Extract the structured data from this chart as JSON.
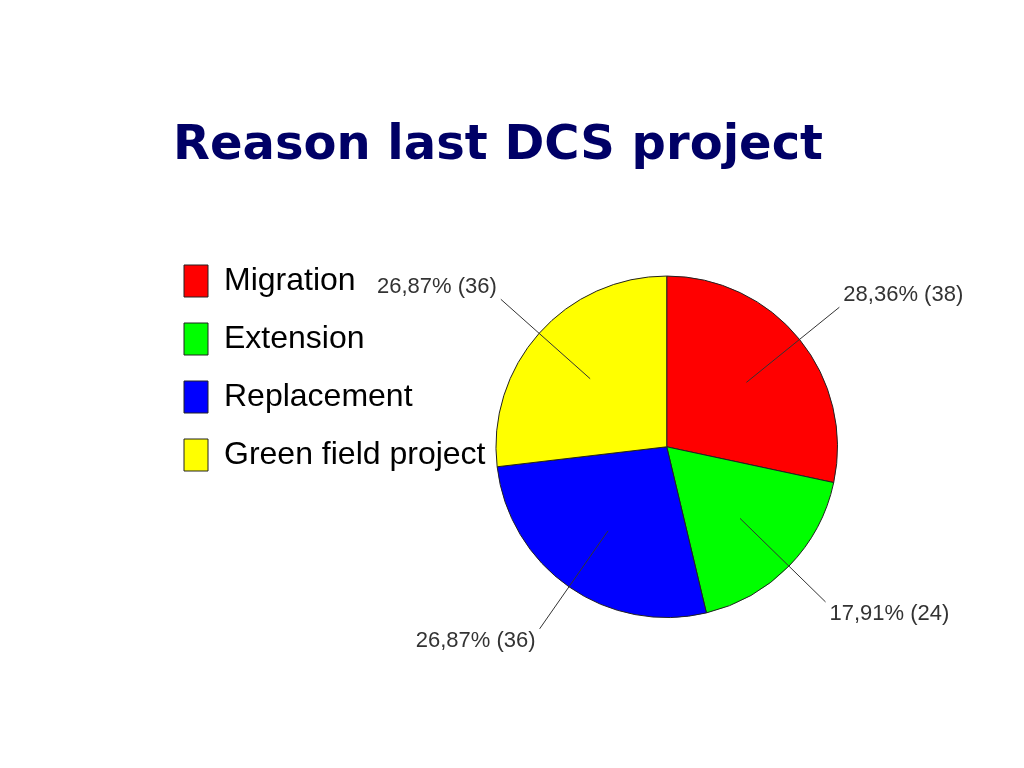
{
  "chart_data": {
    "type": "pie",
    "title": "Reason last DCS project",
    "categories": [
      "Migration",
      "Extension",
      "Replacement",
      "Green field project"
    ],
    "values": [
      38,
      24,
      36,
      36
    ],
    "colors": [
      "#ff0000",
      "#00ff00",
      "#0000ff",
      "#ffff00"
    ],
    "value_labels": [
      "28,36% (38)",
      "17,91% (24)",
      "26,87% (36)",
      "26,87% (36)"
    ],
    "legend": "left"
  }
}
